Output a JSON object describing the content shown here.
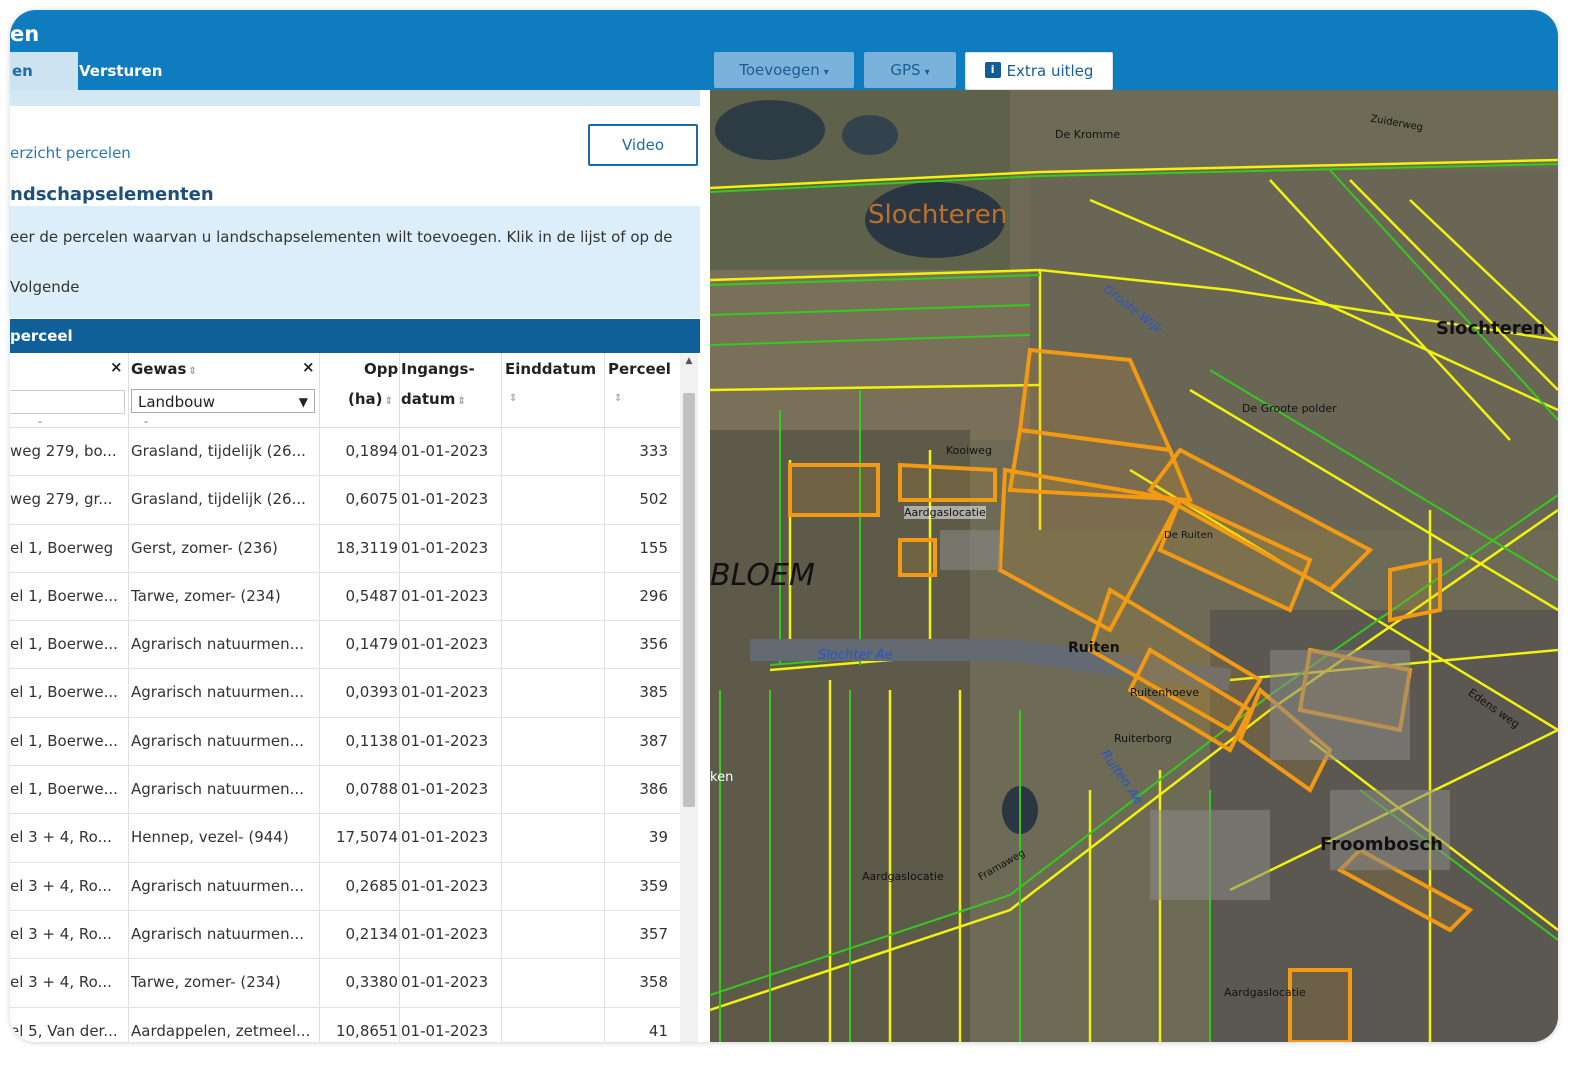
{
  "app": {
    "title": "en"
  },
  "tabs": {
    "active": "en",
    "send": "Versturen"
  },
  "toolbar": {
    "toevoegen": "Toevoegen",
    "gps": "GPS",
    "extra": "Extra uitleg",
    "info_glyph": "i",
    "caret": "▾"
  },
  "left": {
    "breadcrumb": "erzicht percelen",
    "video_label": "Video",
    "section_title": "ndschapselementen",
    "instruction_line1": "eer de percelen waarvan u landschapselementen wilt toevoegen. Klik in de lijst of op de",
    "instruction_line2": "Volgende",
    "table_title": "perceel"
  },
  "table": {
    "headers": {
      "col1_clear": "×",
      "gewas": "Gewas",
      "gewas_clear": "×",
      "opp_line1": "Opp",
      "opp_line2": "(ha)",
      "ingang_line1": "Ingangs-",
      "ingang_line2": "datum",
      "einddatum": "Einddatum",
      "perceel": "Perceel",
      "sort": "⇕"
    },
    "filter_select_value": "Landbouw",
    "filter_dash1": "-",
    "filter_dash2": "-",
    "rows": [
      {
        "addr": "weg 279, bo...",
        "gewas": "Grasland, tijdelijk (26...",
        "opp": "0,1894",
        "datum": "01-01-2023",
        "einddatum": "",
        "perceel": "333"
      },
      {
        "addr": "weg 279, gr...",
        "gewas": "Grasland, tijdelijk (26...",
        "opp": "0,6075",
        "datum": "01-01-2023",
        "einddatum": "",
        "perceel": "502"
      },
      {
        "addr": "el 1, Boerweg",
        "gewas": "Gerst, zomer- (236)",
        "opp": "18,3119",
        "datum": "01-01-2023",
        "einddatum": "",
        "perceel": "155"
      },
      {
        "addr": "el 1, Boerwe...",
        "gewas": "Tarwe, zomer- (234)",
        "opp": "0,5487",
        "datum": "01-01-2023",
        "einddatum": "",
        "perceel": "296"
      },
      {
        "addr": "el 1, Boerwe...",
        "gewas": "Agrarisch natuurmen...",
        "opp": "0,1479",
        "datum": "01-01-2023",
        "einddatum": "",
        "perceel": "356"
      },
      {
        "addr": "el 1, Boerwe...",
        "gewas": "Agrarisch natuurmen...",
        "opp": "0,0393",
        "datum": "01-01-2023",
        "einddatum": "",
        "perceel": "385"
      },
      {
        "addr": "el 1, Boerwe...",
        "gewas": "Agrarisch natuurmen...",
        "opp": "0,1138",
        "datum": "01-01-2023",
        "einddatum": "",
        "perceel": "387"
      },
      {
        "addr": "el 1, Boerwe...",
        "gewas": "Agrarisch natuurmen...",
        "opp": "0,0788",
        "datum": "01-01-2023",
        "einddatum": "",
        "perceel": "386"
      },
      {
        "addr": "el 3 + 4, Ro...",
        "gewas": "Hennep, vezel- (944)",
        "opp": "17,5074",
        "datum": "01-01-2023",
        "einddatum": "",
        "perceel": "39"
      },
      {
        "addr": "el 3 + 4, Ro...",
        "gewas": "Agrarisch natuurmen...",
        "opp": "0,2685",
        "datum": "01-01-2023",
        "einddatum": "",
        "perceel": "359"
      },
      {
        "addr": "el 3 + 4, Ro...",
        "gewas": "Agrarisch natuurmen...",
        "opp": "0,2134",
        "datum": "01-01-2023",
        "einddatum": "",
        "perceel": "357"
      },
      {
        "addr": "el 3 + 4, Ro...",
        "gewas": "Tarwe, zomer- (234)",
        "opp": "0,3380",
        "datum": "01-01-2023",
        "einddatum": "",
        "perceel": "358"
      },
      {
        "addr": "el 5, Van der...",
        "gewas": "Aardappelen, zetmeel...",
        "opp": "10,8651",
        "datum": "01-01-2023",
        "einddatum": "",
        "perceel": "41"
      }
    ]
  },
  "map": {
    "labels": {
      "de_kromme": "De Kromme",
      "slochteren_lake": "Slochteren",
      "groote_wijk": "Groote Wijk",
      "slochteren": "Slochteren",
      "de_groote_polder": "De Groote polder",
      "kooiweg": "Kooiweg",
      "aardgaslocatie1": "Aardgaslocatie",
      "bloem": "BLOEM",
      "slochter_ae": "Slochter Ae",
      "ruiten": "Ruiten",
      "ruitenhoeve": "Ruitenhoeve",
      "ruiterborg": "Ruiterborg",
      "ruiten_ae": "Ruiten Ae",
      "froombosch": "Froombosch",
      "aardgaslocatie2": "Aardgaslocatie",
      "aardgaslocatie3": "Aardgaslocatie",
      "zuiderweg": "Zuiderweg",
      "de_ruiten": "De Ruiten",
      "edens_weg": "Edens weg",
      "ken": "ken",
      "framaweg": "Framaweg"
    },
    "colors": {
      "field_boundary_yellow": "#f2f20d",
      "field_boundary_green": "#36c91e",
      "selected_parcel_orange": "#f29a13",
      "water_blue": "#2455c9"
    }
  }
}
